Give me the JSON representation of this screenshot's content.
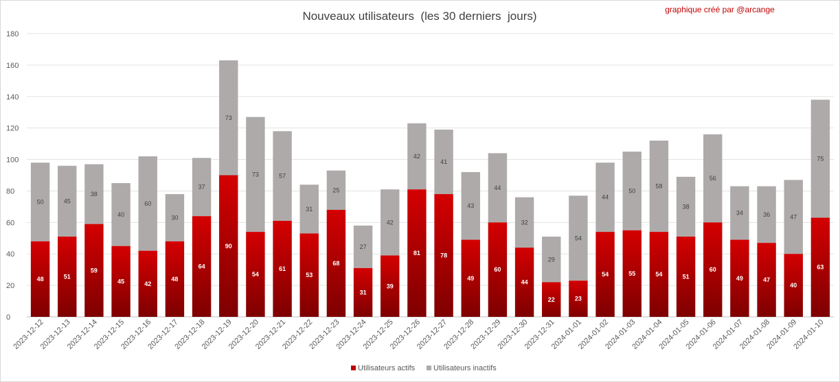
{
  "chart_data": {
    "type": "bar",
    "stacked": true,
    "title": "Nouveaux utilisateurs  (les 30 derniers  jours)",
    "credit": "graphique créé par @arcange",
    "ylim": [
      0,
      180
    ],
    "yticks": [
      0,
      20,
      40,
      60,
      80,
      100,
      120,
      140,
      160,
      180
    ],
    "grid": true,
    "legend_position": "bottom",
    "categories": [
      "2023-12-12",
      "2023-12-13",
      "2023-12-14",
      "2023-12-15",
      "2023-12-16",
      "2023-12-17",
      "2023-12-18",
      "2023-12-19",
      "2023-12-20",
      "2023-12-21",
      "2023-12-22",
      "2023-12-23",
      "2023-12-24",
      "2023-12-25",
      "2023-12-26",
      "2023-12-27",
      "2023-12-28",
      "2023-12-29",
      "2023-12-30",
      "2023-12-31",
      "2024-01-01",
      "2024-01-02",
      "2024-01-03",
      "2024-01-04",
      "2024-01-05",
      "2024-01-06",
      "2024-01-07",
      "2024-01-08",
      "2024-01-09",
      "2024-01-10"
    ],
    "series": [
      {
        "name": "Utilisateurs actifs",
        "color": "#c00000",
        "values": [
          48,
          51,
          59,
          45,
          42,
          48,
          64,
          90,
          54,
          61,
          53,
          68,
          31,
          39,
          81,
          78,
          49,
          60,
          44,
          22,
          23,
          54,
          55,
          54,
          51,
          60,
          49,
          47,
          40,
          63
        ]
      },
      {
        "name": "Utilisateurs inactifs",
        "color": "#aeaaaa",
        "values": [
          50,
          45,
          38,
          40,
          60,
          30,
          37,
          73,
          73,
          57,
          31,
          25,
          27,
          42,
          42,
          41,
          43,
          44,
          32,
          29,
          54,
          44,
          50,
          58,
          38,
          56,
          34,
          36,
          47,
          75
        ]
      }
    ]
  }
}
